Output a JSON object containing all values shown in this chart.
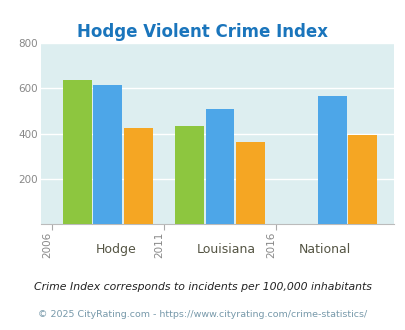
{
  "title": "Hodge Violent Crime Index",
  "years": [
    "2006",
    "2011",
    "2016"
  ],
  "hodge": [
    635,
    435,
    null
  ],
  "louisiana": [
    615,
    510,
    565
  ],
  "national": [
    425,
    365,
    395
  ],
  "bar_colors": {
    "hodge": "#8dc63f",
    "louisiana": "#4da6e8",
    "national": "#f5a623"
  },
  "ylim": [
    0,
    800
  ],
  "yticks": [
    0,
    200,
    400,
    600,
    800
  ],
  "bg_color": "#ddeef0",
  "title_color": "#1a75bc",
  "legend_labels": [
    "Hodge",
    "Louisiana",
    "National"
  ],
  "legend_text_color": "#555544",
  "footnote1": "Crime Index corresponds to incidents per 100,000 inhabitants",
  "footnote2": "© 2025 CityRating.com - https://www.cityrating.com/crime-statistics/",
  "footnote1_color": "#222222",
  "footnote2_color": "#7799aa"
}
